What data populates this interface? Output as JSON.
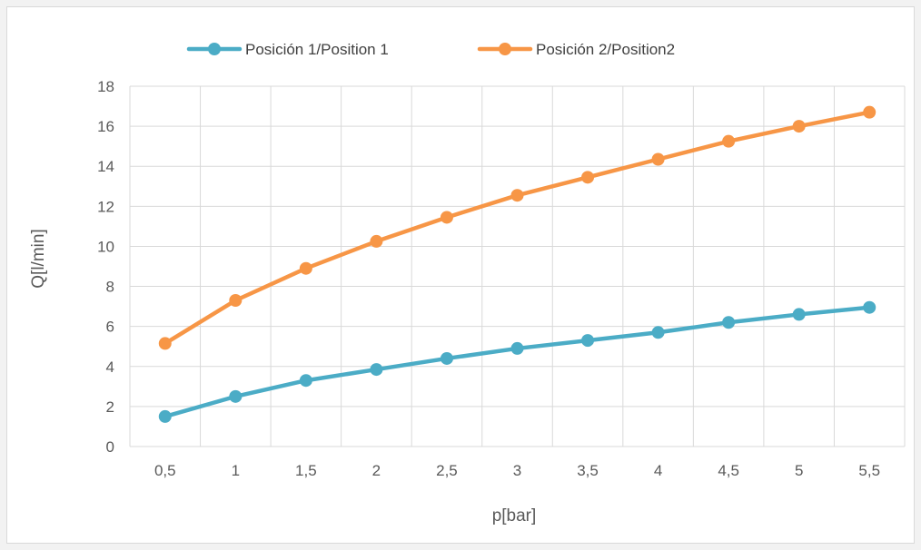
{
  "chart_data": {
    "type": "line",
    "title": "",
    "xlabel": "p[bar]",
    "ylabel": "Q[l/min]",
    "categories": [
      "0,5",
      "1",
      "1,5",
      "2",
      "2,5",
      "3",
      "3,5",
      "4",
      "4,5",
      "5",
      "5,5"
    ],
    "ylim": [
      0,
      18
    ],
    "yticks": [
      0,
      2,
      4,
      6,
      8,
      10,
      12,
      14,
      16,
      18
    ],
    "grid": true,
    "legend": "top",
    "series": [
      {
        "name": "Posición 1/Position 1",
        "color": "#4bacc6",
        "values": [
          1.5,
          2.5,
          3.3,
          3.85,
          4.4,
          4.9,
          5.3,
          5.7,
          6.2,
          6.6,
          6.95
        ]
      },
      {
        "name": "Posición 2/Position2",
        "color": "#f79646",
        "values": [
          5.15,
          7.3,
          8.9,
          10.25,
          11.45,
          12.55,
          13.45,
          14.35,
          15.25,
          16.0,
          16.7
        ]
      }
    ]
  }
}
